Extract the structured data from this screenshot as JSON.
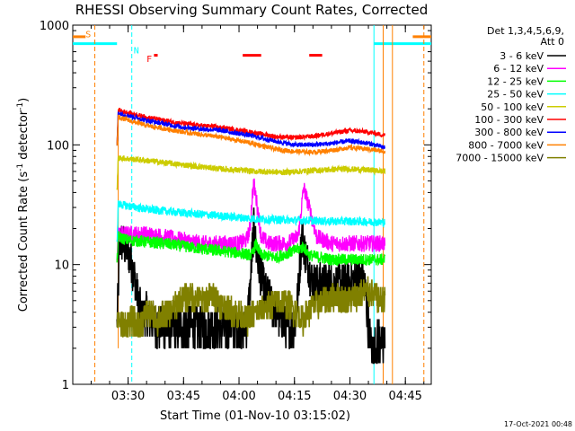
{
  "chart_data": {
    "type": "line",
    "title": "RHESSI Observing Summary Count Rates, Corrected",
    "xlabel": "Start Time (01-Nov-10 03:15:02)",
    "ylabel_parts": {
      "main": "Corrected Count Rate (s",
      "sup1": "-1",
      "mid": " detector",
      "sup2": "-1",
      "end": ")"
    },
    "y_scale": "log",
    "ylim": [
      1,
      1000
    ],
    "y_ticks": [
      {
        "value": 1,
        "label": "1"
      },
      {
        "value": 10,
        "label": "10"
      },
      {
        "value": 100,
        "label": "100"
      },
      {
        "value": 1000,
        "label": "1000"
      }
    ],
    "x_time_range": [
      "03:15:02",
      "04:52:00"
    ],
    "x_ticks": [
      "03:30",
      "03:45",
      "04:00",
      "04:15",
      "04:30",
      "04:45"
    ],
    "legend": {
      "position": "right",
      "header": [
        "Det 1,3,4,5,6,9,",
        "Att 0"
      ],
      "entries": [
        {
          "label": "3 - 6 keV",
          "color": "#000000"
        },
        {
          "label": "6 - 12 keV",
          "color": "#ff00ff"
        },
        {
          "label": "12 - 25 keV",
          "color": "#00ff00"
        },
        {
          "label": "25 - 50 keV",
          "color": "#00ffff"
        },
        {
          "label": "50 - 100 keV",
          "color": "#cccc00"
        },
        {
          "label": "100 - 300 keV",
          "color": "#ff0000"
        },
        {
          "label": "300 - 800 keV",
          "color": "#0000ff"
        },
        {
          "label": "800 - 7000 keV",
          "color": "#ff8000"
        },
        {
          "label": "7000 - 15000 keV",
          "color": "#808000"
        }
      ]
    },
    "series": [
      {
        "name": "3 - 6 keV",
        "color": "#000000",
        "x": [
          "03:27:00",
          "03:27:20",
          "03:27:40",
          "03:28:30",
          "03:30:00",
          "03:31:00",
          "03:32:00",
          "03:33:00",
          "03:34:00",
          "03:35:00",
          "03:36:00",
          "03:38:00",
          "03:40:00",
          "03:45:00",
          "03:50:00",
          "03:55:00",
          "04:00:00",
          "04:02:00",
          "04:03:00",
          "04:03:30",
          "04:04:00",
          "04:05:00",
          "04:07:00",
          "04:10:00",
          "04:13:00",
          "04:15:00",
          "04:16:00",
          "04:17:00",
          "04:18:00",
          "04:20:00",
          "04:22:00",
          "04:25:00",
          "04:28:00",
          "04:30:00",
          "04:32:00",
          "04:34:00",
          "04:35:00",
          "04:36:00",
          "04:37:00",
          "04:38:00",
          "04:39:00",
          "04:39:30"
        ],
        "values": [
          3,
          6,
          16,
          15,
          13,
          10,
          7,
          4.5,
          3.5,
          4,
          3.5,
          3,
          3,
          3,
          3,
          3,
          3,
          3,
          6,
          12,
          20,
          11,
          6,
          4,
          3,
          3,
          6,
          18,
          12,
          7,
          7,
          7,
          7,
          7,
          8,
          7,
          3,
          2,
          2,
          2.5,
          2,
          2.5
        ]
      },
      {
        "name": "6 - 12 keV",
        "color": "#ff00ff",
        "x": [
          "03:27:00",
          "03:27:20",
          "03:30:00",
          "03:35:00",
          "03:40:00",
          "03:45:00",
          "03:50:00",
          "03:55:00",
          "04:00:00",
          "04:02:00",
          "04:03:00",
          "04:03:30",
          "04:04:00",
          "04:05:00",
          "04:06:00",
          "04:08:00",
          "04:10:00",
          "04:13:00",
          "04:16:00",
          "04:17:30",
          "04:19:00",
          "04:21:00",
          "04:25:00",
          "04:30:00",
          "04:35:00",
          "04:39:30"
        ],
        "values": [
          12,
          18,
          18,
          18,
          17,
          16,
          15,
          15,
          15,
          16,
          20,
          35,
          48,
          30,
          17,
          15,
          15,
          15,
          17,
          44,
          30,
          17,
          15,
          15,
          15,
          15
        ]
      },
      {
        "name": "12 - 25 keV",
        "color": "#00ff00",
        "x": [
          "03:27:00",
          "03:27:20",
          "03:30:00",
          "03:40:00",
          "03:50:00",
          "04:00:00",
          "04:03:30",
          "04:04:30",
          "04:06:00",
          "04:10:00",
          "04:17:30",
          "04:19:00",
          "04:25:00",
          "04:30:00",
          "04:39:30"
        ],
        "values": [
          10,
          17,
          16,
          15,
          13.5,
          12.5,
          12,
          15,
          12,
          11.5,
          14,
          12,
          11,
          11,
          11
        ]
      },
      {
        "name": "25 - 50 keV",
        "color": "#00ffff",
        "x": [
          "03:27:00",
          "03:27:20",
          "03:35:00",
          "03:45:00",
          "03:55:00",
          "04:05:00",
          "04:15:00",
          "04:25:00",
          "04:30:00",
          "04:39:30"
        ],
        "values": [
          15,
          32,
          29,
          27,
          25.5,
          24,
          23.5,
          23,
          23,
          22.5
        ]
      },
      {
        "name": "50 - 100 keV",
        "color": "#cccc00",
        "x": [
          "03:27:00",
          "03:27:20",
          "03:35:00",
          "03:45:00",
          "03:55:00",
          "04:05:00",
          "04:12:00",
          "04:20:00",
          "04:28:00",
          "04:34:00",
          "04:39:30"
        ],
        "values": [
          40,
          78,
          74,
          68,
          63,
          60,
          59,
          61,
          63,
          62,
          60
        ]
      },
      {
        "name": "100 - 300 keV",
        "color": "#ff0000",
        "x": [
          "03:27:00",
          "03:27:20",
          "03:35:00",
          "03:45:00",
          "03:55:00",
          "04:03:00",
          "04:10:00",
          "04:15:00",
          "04:20:00",
          "04:25:00",
          "04:30:00",
          "04:35:00",
          "04:39:30"
        ],
        "values": [
          100,
          195,
          170,
          150,
          140,
          128,
          117,
          115,
          118,
          125,
          132,
          128,
          120
        ]
      },
      {
        "name": "300 - 800 keV",
        "color": "#0000ff",
        "x": [
          "03:27:00",
          "03:27:20",
          "03:35:00",
          "03:45:00",
          "03:55:00",
          "04:03:00",
          "04:10:00",
          "04:15:00",
          "04:20:00",
          "04:25:00",
          "04:30:00",
          "04:35:00",
          "04:39:30"
        ],
        "values": [
          100,
          185,
          160,
          140,
          132,
          120,
          107,
          100,
          100,
          103,
          108,
          103,
          95
        ]
      },
      {
        "name": "800 - 7000 keV",
        "color": "#ff8000",
        "x": [
          "03:27:00",
          "03:27:20",
          "03:35:00",
          "03:45:00",
          "03:55:00",
          "04:03:00",
          "04:10:00",
          "04:15:00",
          "04:20:00",
          "04:25:00",
          "04:30:00",
          "04:35:00",
          "04:39:30"
        ],
        "values": [
          100,
          170,
          145,
          128,
          116,
          104,
          92,
          88,
          87,
          90,
          95,
          92,
          88
        ]
      },
      {
        "name": "7000 - 15000 keV",
        "color": "#808000",
        "x": [
          "03:27:00",
          "03:27:20",
          "03:29:00",
          "03:31:00",
          "03:33:00",
          "03:35:00",
          "03:38:00",
          "03:41:00",
          "03:44:00",
          "03:47:00",
          "03:50:00",
          "03:53:00",
          "03:56:00",
          "03:59:00",
          "04:02:00",
          "04:05:00",
          "04:08:00",
          "04:11:00",
          "04:14:00",
          "04:17:00",
          "04:20:00",
          "04:23:00",
          "04:26:00",
          "04:29:00",
          "04:32:00",
          "04:35:00",
          "04:38:00",
          "04:39:30"
        ],
        "values": [
          3,
          3.5,
          3,
          3.5,
          3,
          4,
          3.5,
          4,
          5,
          5.5,
          5,
          5.5,
          4.5,
          4,
          3.5,
          4,
          4.5,
          5,
          4.5,
          3.5,
          4.5,
          5,
          5.5,
          5,
          5.5,
          6,
          5,
          5
        ]
      }
    ],
    "markers": [
      {
        "type": "hline",
        "color": "#00ffff",
        "x": [
          "03:15:02",
          "03:27:00"
        ],
        "y": 700
      },
      {
        "type": "hline",
        "color": "#00ffff",
        "x": [
          "04:36:30",
          "04:52:00"
        ],
        "y": 700
      },
      {
        "type": "hline",
        "color": "#ff8000",
        "x": [
          "03:15:02",
          "03:18:30"
        ],
        "y": 800
      },
      {
        "type": "hline",
        "color": "#ff8000",
        "x": [
          "04:47:00",
          "04:52:00"
        ],
        "y": 800
      },
      {
        "type": "vline",
        "color": "#00ffff",
        "style": "dashed",
        "x": "03:31:00"
      },
      {
        "type": "vline",
        "color": "#00ffff",
        "style": "solid",
        "x": "04:36:30"
      },
      {
        "type": "vline",
        "color": "#ff8000",
        "style": "dashed",
        "x": "03:21:00"
      },
      {
        "type": "vline",
        "color": "#ff8000",
        "style": "solid",
        "x": "04:39:00"
      },
      {
        "type": "vline",
        "color": "#ff8000",
        "style": "solid",
        "x": "04:41:30"
      },
      {
        "type": "vline",
        "color": "#ff8000",
        "style": "dashed",
        "x": "04:50:00"
      },
      {
        "type": "vline",
        "color": "#ff8000",
        "style": "solid",
        "x": "03:27:20",
        "ylim": [
          2,
          200
        ]
      },
      {
        "type": "bar",
        "color": "#ff0000",
        "x": [
          "03:37:00",
          "03:38:00"
        ],
        "y": 560
      },
      {
        "type": "bar",
        "color": "#ff0000",
        "x": [
          "04:01:00",
          "04:06:00"
        ],
        "y": 560
      },
      {
        "type": "bar",
        "color": "#ff0000",
        "x": [
          "04:19:00",
          "04:22:30"
        ],
        "y": 560
      }
    ],
    "marker_labels": [
      {
        "text": "S",
        "color": "#ff8000",
        "x": "03:18:30",
        "y": 850
      },
      {
        "text": "N",
        "color": "#00ffff",
        "x": "03:31:30",
        "y": 620
      },
      {
        "text": "F",
        "color": "#ff0000",
        "x": "03:35:00",
        "y": 530
      }
    ],
    "footer_timestamp": "17-Oct-2021 00:48"
  }
}
